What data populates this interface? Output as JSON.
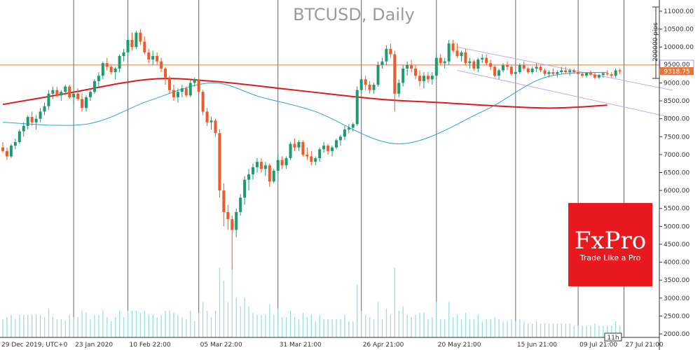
{
  "chart_data": {
    "type": "candlestick",
    "title": "BTCUSD, Daily",
    "xlabel": "",
    "ylabel": "",
    "ylim": [
      1900,
      11200
    ],
    "y_ticks": [
      "11000.00",
      "10500.00",
      "10000.00",
      "9500.00",
      "9000.00",
      "8500.00",
      "8000.00",
      "7500.00",
      "7000.00",
      "6500.00",
      "6000.00",
      "5500.00",
      "5000.00",
      "4500.00",
      "4000.00",
      "3500.00",
      "3000.00",
      "2500.00",
      "2000.00"
    ],
    "x_ticks": [
      "29 Dec 2019, UTC+0",
      "23 Jan 2020",
      "10 Feb 22:00",
      "05 Mar 22:00",
      "31 Mar 21:00",
      "26 Apr 21:00",
      "20 May 21:00",
      "15 Jun 21:00",
      "09 Jul 21:00",
      "27 Jul 21:00"
    ],
    "price_labels": {
      "level": "9500.00",
      "bid": "9318.75"
    },
    "pips_label": "200000 pips",
    "time_marker": "11h",
    "candles": [
      [
        7200,
        7350,
        7050,
        7100
      ],
      [
        7100,
        7200,
        6850,
        6950
      ],
      [
        6950,
        7300,
        6900,
        7250
      ],
      [
        7250,
        7450,
        7150,
        7350
      ],
      [
        7350,
        7700,
        7300,
        7650
      ],
      [
        7650,
        7900,
        7500,
        7800
      ],
      [
        7800,
        8100,
        7700,
        8050
      ],
      [
        8050,
        8200,
        7800,
        7900
      ],
      [
        7900,
        8100,
        7700,
        8000
      ],
      [
        8000,
        8300,
        7900,
        8200
      ],
      [
        8200,
        8450,
        8100,
        8350
      ],
      [
        8350,
        8800,
        8250,
        8700
      ],
      [
        8700,
        8900,
        8550,
        8800
      ],
      [
        8800,
        8900,
        8600,
        8650
      ],
      [
        8650,
        8800,
        8500,
        8750
      ],
      [
        8750,
        8950,
        8700,
        8900
      ],
      [
        8900,
        8950,
        8550,
        8600
      ],
      [
        8600,
        8750,
        8400,
        8700
      ],
      [
        8700,
        8850,
        8500,
        8550
      ],
      [
        8550,
        8700,
        8200,
        8300
      ],
      [
        8300,
        8650,
        8200,
        8600
      ],
      [
        8600,
        8800,
        8500,
        8750
      ],
      [
        8750,
        9100,
        8700,
        9050
      ],
      [
        9050,
        9300,
        8900,
        9200
      ],
      [
        9200,
        9600,
        9100,
        9550
      ],
      [
        9550,
        9700,
        9350,
        9450
      ],
      [
        9450,
        9500,
        9250,
        9300
      ],
      [
        9300,
        9450,
        9100,
        9400
      ],
      [
        9400,
        9800,
        9300,
        9750
      ],
      [
        9750,
        9950,
        9600,
        9850
      ],
      [
        9850,
        10300,
        9800,
        10200
      ],
      [
        10200,
        10400,
        9900,
        10000
      ],
      [
        10000,
        10450,
        9950,
        10400
      ],
      [
        10400,
        10500,
        10050,
        10150
      ],
      [
        10150,
        10300,
        9800,
        9850
      ],
      [
        9850,
        9950,
        9550,
        9650
      ],
      [
        9650,
        9900,
        9500,
        9750
      ],
      [
        9750,
        9850,
        9500,
        9600
      ],
      [
        9600,
        9700,
        9300,
        9400
      ],
      [
        9400,
        9450,
        8950,
        9150
      ],
      [
        9150,
        9200,
        8700,
        8800
      ],
      [
        8800,
        8950,
        8500,
        8600
      ],
      [
        8600,
        8850,
        8450,
        8750
      ],
      [
        8750,
        8950,
        8600,
        8850
      ],
      [
        8850,
        8900,
        8600,
        8650
      ],
      [
        8650,
        9100,
        8600,
        9000
      ],
      [
        9000,
        9150,
        8900,
        9100
      ],
      [
        9100,
        9150,
        8700,
        8750
      ],
      [
        8750,
        8800,
        8100,
        8200
      ],
      [
        8200,
        8300,
        7800,
        7900
      ],
      [
        7900,
        8050,
        7700,
        7950
      ],
      [
        7950,
        8000,
        7500,
        7600
      ],
      [
        7600,
        7700,
        5800,
        6000
      ],
      [
        6000,
        6200,
        5000,
        5400
      ],
      [
        5400,
        5600,
        4900,
        5200
      ],
      [
        5200,
        5300,
        3800,
        4900
      ],
      [
        4900,
        5500,
        4700,
        5400
      ],
      [
        5400,
        5900,
        5300,
        5800
      ],
      [
        5800,
        6400,
        5600,
        6300
      ],
      [
        6300,
        6600,
        6000,
        6450
      ],
      [
        6450,
        6750,
        6300,
        6650
      ],
      [
        6650,
        6900,
        6500,
        6800
      ],
      [
        6800,
        6900,
        6500,
        6600
      ],
      [
        6600,
        6800,
        6400,
        6700
      ],
      [
        6700,
        6750,
        6100,
        6250
      ],
      [
        6250,
        6600,
        6200,
        6550
      ],
      [
        6550,
        7000,
        6450,
        6850
      ],
      [
        6850,
        6950,
        6600,
        6700
      ],
      [
        6700,
        6950,
        6600,
        6900
      ],
      [
        6900,
        7350,
        6850,
        7300
      ],
      [
        7300,
        7450,
        7100,
        7200
      ],
      [
        7200,
        7400,
        7100,
        7350
      ],
      [
        7350,
        7400,
        6950,
        7000
      ],
      [
        7000,
        7200,
        6850,
        6950
      ],
      [
        6950,
        7100,
        6700,
        6800
      ],
      [
        6800,
        6950,
        6700,
        6900
      ],
      [
        6900,
        7200,
        6800,
        7150
      ],
      [
        7150,
        7350,
        7050,
        7250
      ],
      [
        7250,
        7300,
        7000,
        7100
      ],
      [
        7100,
        7250,
        6950,
        7200
      ],
      [
        7200,
        7450,
        7150,
        7400
      ],
      [
        7400,
        7550,
        7250,
        7500
      ],
      [
        7500,
        7800,
        7400,
        7700
      ],
      [
        7700,
        7850,
        7600,
        7750
      ],
      [
        7750,
        7900,
        7650,
        7850
      ],
      [
        7850,
        8900,
        7800,
        8800
      ],
      [
        8800,
        9200,
        8700,
        9100
      ],
      [
        9100,
        9200,
        8800,
        8950
      ],
      [
        8950,
        9050,
        8700,
        8800
      ],
      [
        8800,
        9000,
        8700,
        8950
      ],
      [
        8950,
        9600,
        8900,
        9500
      ],
      [
        9500,
        9700,
        9400,
        9600
      ],
      [
        9600,
        10050,
        9500,
        9950
      ],
      [
        9950,
        10100,
        9700,
        9800
      ],
      [
        9800,
        9900,
        8200,
        8700
      ],
      [
        8700,
        9100,
        8600,
        9000
      ],
      [
        9000,
        9500,
        8900,
        9400
      ],
      [
        9400,
        9600,
        9200,
        9500
      ],
      [
        9500,
        9650,
        9300,
        9400
      ],
      [
        9400,
        9500,
        9100,
        9200
      ],
      [
        9200,
        9350,
        8900,
        9050
      ],
      [
        9050,
        9300,
        8850,
        9200
      ],
      [
        9200,
        9300,
        9000,
        9100
      ],
      [
        9100,
        9300,
        8950,
        9200
      ],
      [
        9200,
        9800,
        9100,
        9700
      ],
      [
        9700,
        9800,
        9500,
        9550
      ],
      [
        9550,
        9700,
        9400,
        9600
      ],
      [
        9600,
        10200,
        9500,
        10100
      ],
      [
        10100,
        10200,
        9850,
        9900
      ],
      [
        9900,
        10100,
        9700,
        9750
      ],
      [
        9750,
        9900,
        9600,
        9850
      ],
      [
        9850,
        9950,
        9500,
        9550
      ],
      [
        9550,
        9700,
        9400,
        9600
      ],
      [
        9600,
        9650,
        9350,
        9400
      ],
      [
        9400,
        9700,
        9300,
        9650
      ],
      [
        9650,
        9800,
        9550,
        9700
      ],
      [
        9700,
        9800,
        9500,
        9550
      ],
      [
        9550,
        9650,
        9350,
        9450
      ],
      [
        9450,
        9500,
        9150,
        9200
      ],
      [
        9200,
        9400,
        9100,
        9350
      ],
      [
        9350,
        9550,
        9300,
        9500
      ],
      [
        9500,
        9600,
        9350,
        9450
      ],
      [
        9450,
        9500,
        9200,
        9250
      ],
      [
        9250,
        9350,
        9100,
        9300
      ],
      [
        9300,
        9550,
        9250,
        9500
      ],
      [
        9500,
        9600,
        9350,
        9400
      ],
      [
        9400,
        9450,
        9250,
        9300
      ],
      [
        9300,
        9450,
        9250,
        9400
      ],
      [
        9400,
        9550,
        9300,
        9450
      ],
      [
        9450,
        9500,
        9300,
        9350
      ],
      [
        9350,
        9400,
        9200,
        9250
      ],
      [
        9250,
        9350,
        9150,
        9300
      ],
      [
        9300,
        9400,
        9200,
        9250
      ],
      [
        9250,
        9350,
        9150,
        9300
      ],
      [
        9300,
        9450,
        9250,
        9350
      ],
      [
        9350,
        9450,
        9250,
        9300
      ],
      [
        9300,
        9400,
        9200,
        9350
      ],
      [
        9350,
        9400,
        9250,
        9300
      ],
      [
        9300,
        9350,
        9200,
        9250
      ],
      [
        9250,
        9300,
        9150,
        9200
      ],
      [
        9200,
        9300,
        9150,
        9280
      ],
      [
        9280,
        9350,
        9200,
        9230
      ],
      [
        9230,
        9300,
        9100,
        9150
      ],
      [
        9150,
        9250,
        9100,
        9220
      ],
      [
        9220,
        9300,
        9150,
        9270
      ],
      [
        9270,
        9350,
        9200,
        9240
      ],
      [
        9240,
        9300,
        9150,
        9200
      ],
      [
        9200,
        9400,
        9150,
        9350
      ],
      [
        9350,
        9400,
        9250,
        9319
      ]
    ],
    "x_tick_candle_index": [
      0,
      17,
      30,
      47,
      66,
      86,
      104,
      123,
      138,
      149
    ],
    "resistance_line": {
      "from": [
        109,
        10000
      ],
      "to": [
        154,
        8950
      ]
    },
    "support_line": {
      "from": [
        109,
        9350
      ],
      "to": [
        154,
        8200
      ]
    },
    "horizontal_line": 9500,
    "moving_averages": [
      {
        "color": "#e0191b",
        "knots": [
          [
            0,
            8400
          ],
          [
            15,
            8700
          ],
          [
            35,
            9100
          ],
          [
            50,
            9050
          ],
          [
            70,
            8800
          ],
          [
            90,
            8550
          ],
          [
            105,
            8450
          ],
          [
            130,
            8300
          ],
          [
            145,
            8380
          ]
        ]
      },
      {
        "color": "#2aa6cc",
        "knots": [
          [
            0,
            7900
          ],
          [
            20,
            7850
          ],
          [
            35,
            8500
          ],
          [
            50,
            9000
          ],
          [
            62,
            8600
          ],
          [
            75,
            8200
          ],
          [
            95,
            7300
          ],
          [
            115,
            8200
          ],
          [
            130,
            9150
          ],
          [
            145,
            9300
          ]
        ]
      }
    ],
    "volume_ylim": [
      1900,
      3850
    ],
    "colors": {
      "bull": "#1e9b6f",
      "bear": "#f05a28",
      "volume": "#9fdde4",
      "ma_long": "#e0191b",
      "ma_short": "#2aa6cc",
      "channel": "#c8a8e0",
      "level": "#e8743b",
      "grid": "#666666"
    }
  },
  "logo": {
    "brand": "FxPro",
    "tagline": "Trade Like a Pro",
    "color": "#e8191f"
  }
}
